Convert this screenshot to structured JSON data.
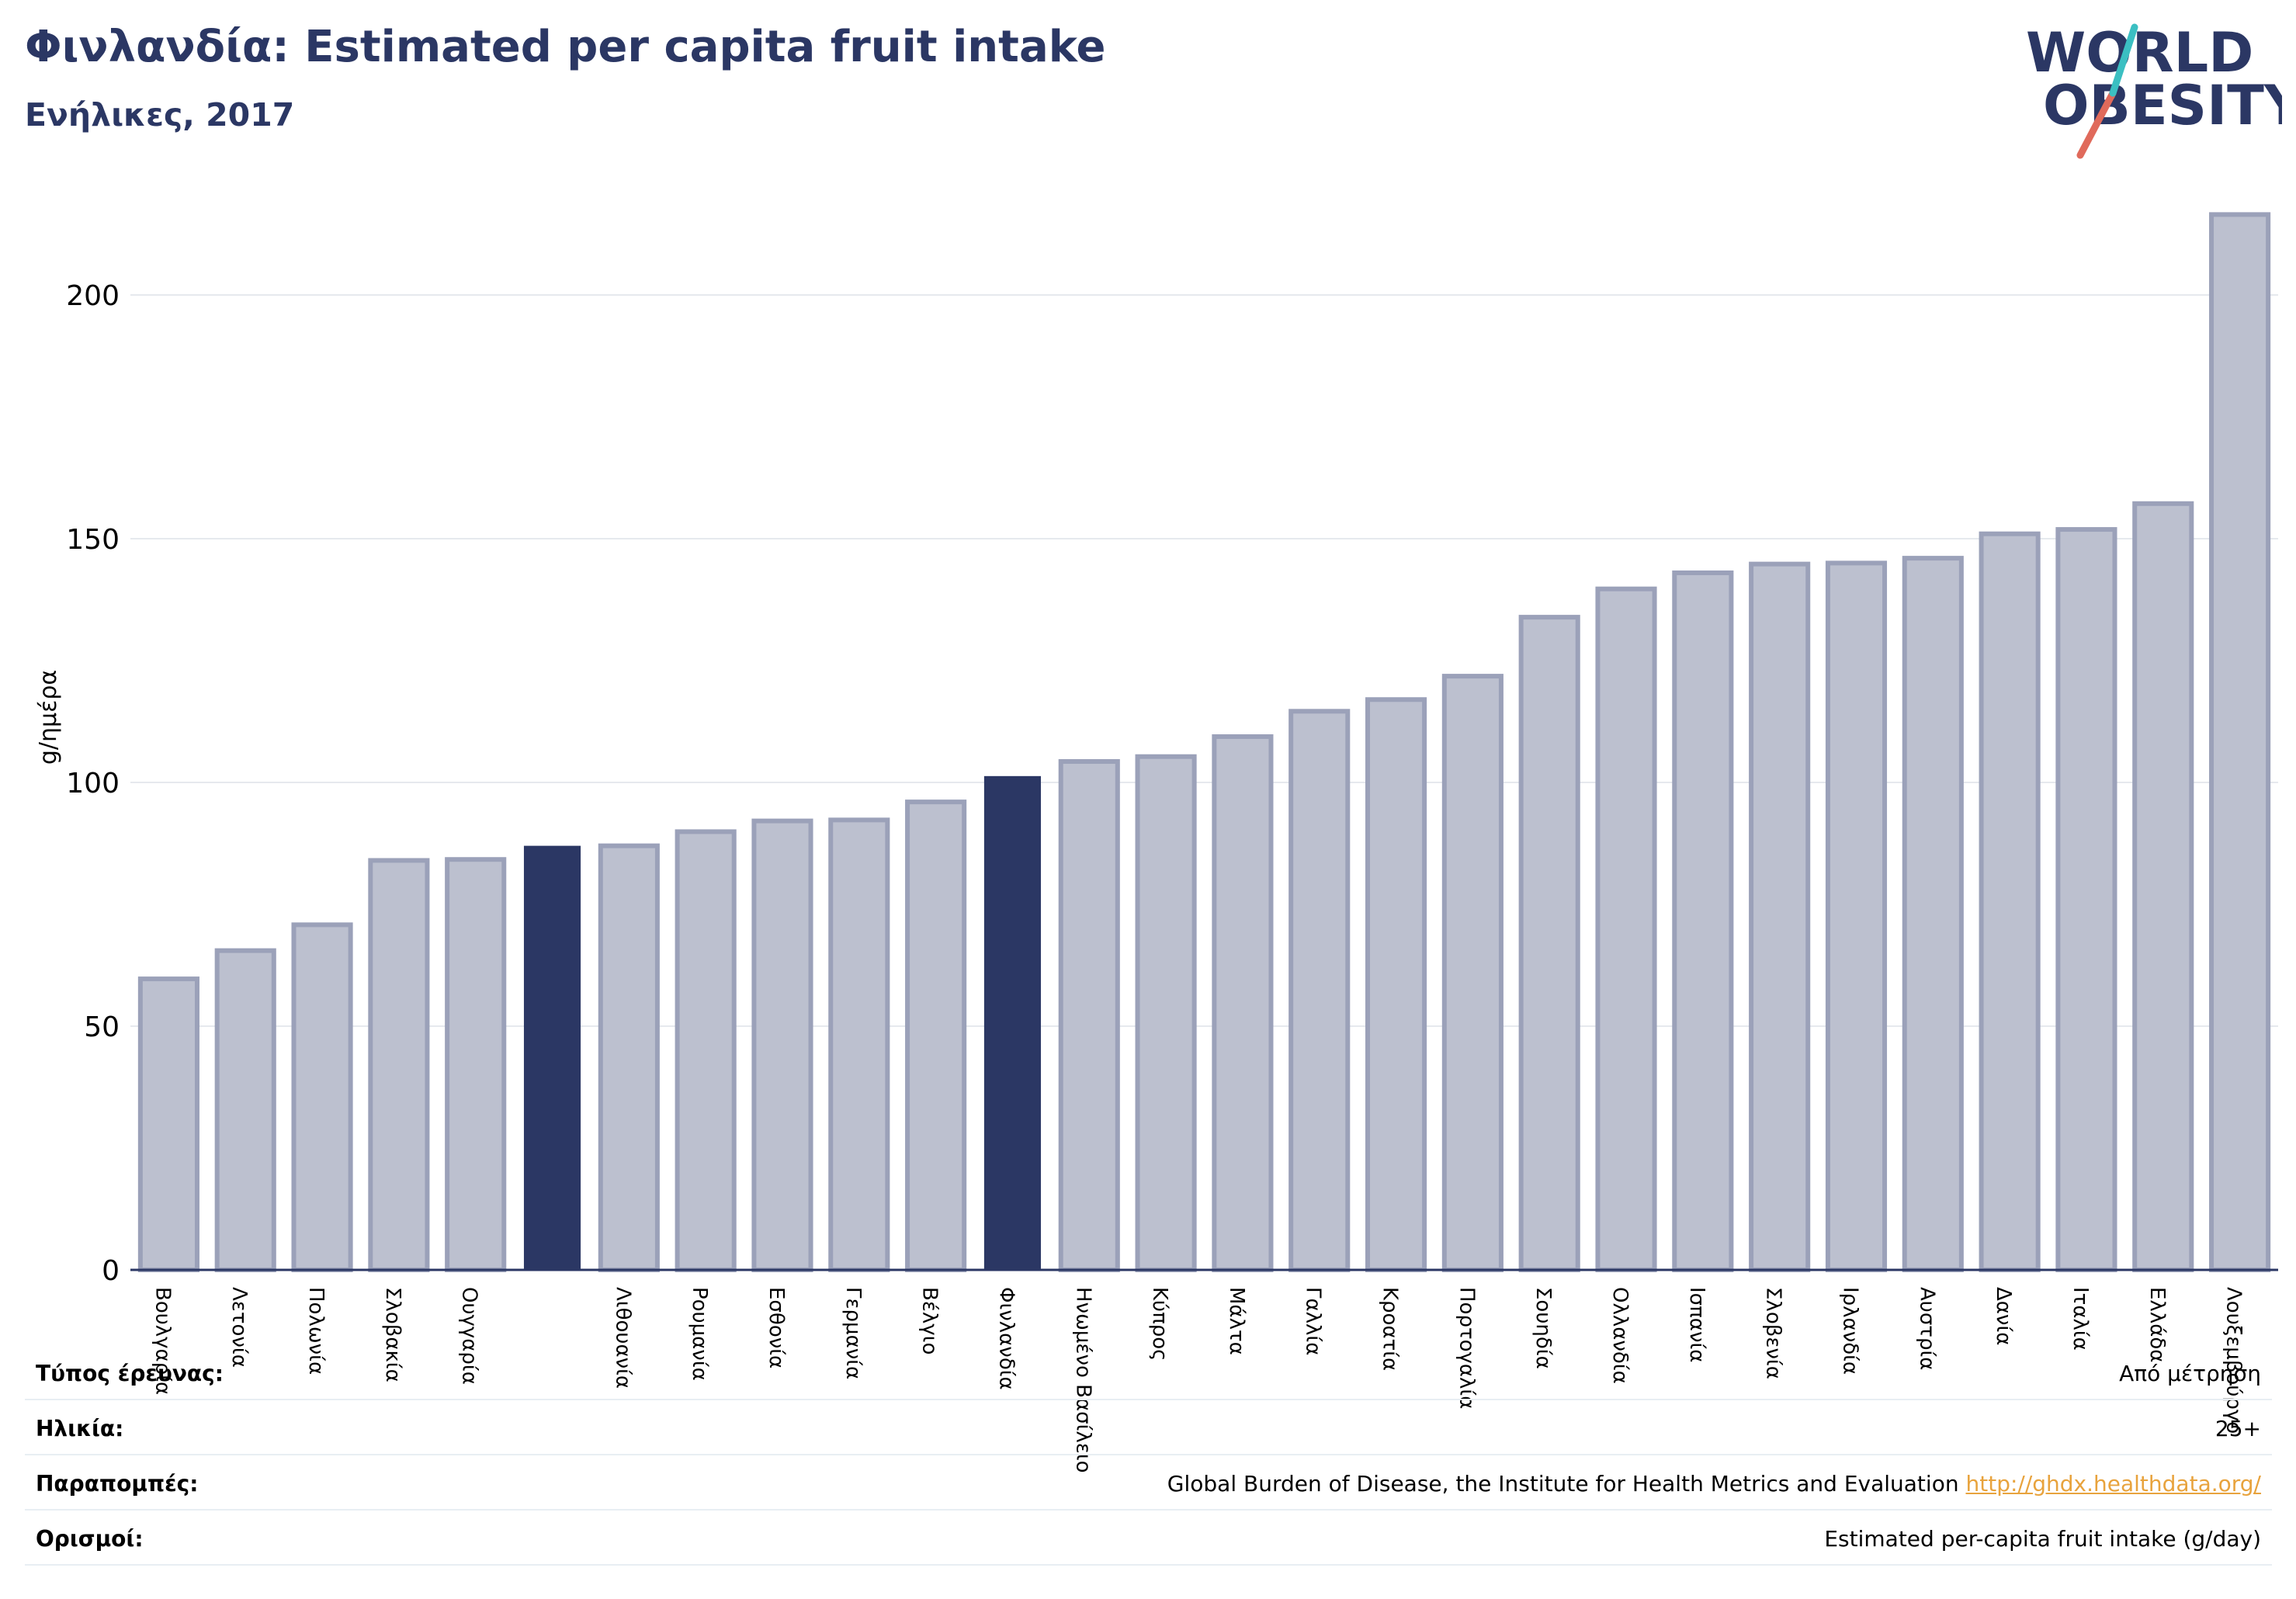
{
  "header": {
    "title": "Φινλανδία: Estimated per capita fruit intake",
    "subtitle": "Ενήλικες, 2017"
  },
  "logo": {
    "line1": "WORLD",
    "line2": "OBESITY"
  },
  "colors": {
    "bar": "#bcc0cf",
    "bar_border": "#9ba1b9",
    "highlight": "#2b3764",
    "grid": "#e6e9ee",
    "axis": "#2b3764",
    "link": "#e8a33d"
  },
  "chart_data": {
    "type": "bar",
    "title": "Φινλανδία: Estimated per capita fruit intake",
    "subtitle": "Ενήλικες, 2017",
    "ylabel": "g/ημέρα",
    "xlabel": "",
    "ylim": [
      0,
      220
    ],
    "yticks": [
      0,
      50,
      100,
      150,
      200
    ],
    "grid": true,
    "categories": [
      "Βουλγαρία",
      "Λετονία",
      "Πολωνία",
      "Σλοβακία",
      "Ουγγαρία",
      "",
      "Λιθουανία",
      "Ρουμανία",
      "Εσθονία",
      "Γερμανία",
      "Βέλγιο",
      "Φινλανδία",
      "Ηνωμένο Βασίλειο",
      "Κύπρος",
      "Μάλτα",
      "Γαλλία",
      "Κροατία",
      "Πορτογαλία",
      "Σουηδία",
      "Ολλανδία",
      "Ισπανία",
      "Σλοβενία",
      "Ιρλανδία",
      "Αυστρία",
      "Δανία",
      "Ιταλία",
      "Ελλάδα",
      "Λουξεμβούργο"
    ],
    "values": [
      59.7,
      65.5,
      70.8,
      84.0,
      84.2,
      87.0,
      87.0,
      89.9,
      92.1,
      92.3,
      96.0,
      101.3,
      104.3,
      105.3,
      109.4,
      114.6,
      117.0,
      121.8,
      133.9,
      139.7,
      143.0,
      144.8,
      145.0,
      146.0,
      151.0,
      151.9,
      157.2,
      216.5
    ],
    "highlighted": [
      5,
      11
    ]
  },
  "meta": [
    {
      "key": "Τύπος έρευνας:",
      "value": "Από μέτρηση"
    },
    {
      "key": "Ηλικία:",
      "value": "25+"
    },
    {
      "key": "Παραπομπές:",
      "value": "Global Burden of Disease, the Institute for Health Metrics and Evaluation",
      "link": "http://ghdx.healthdata.org/"
    },
    {
      "key": "Ορισμοί:",
      "value": "Estimated per-capita fruit intake (g/day)"
    }
  ]
}
